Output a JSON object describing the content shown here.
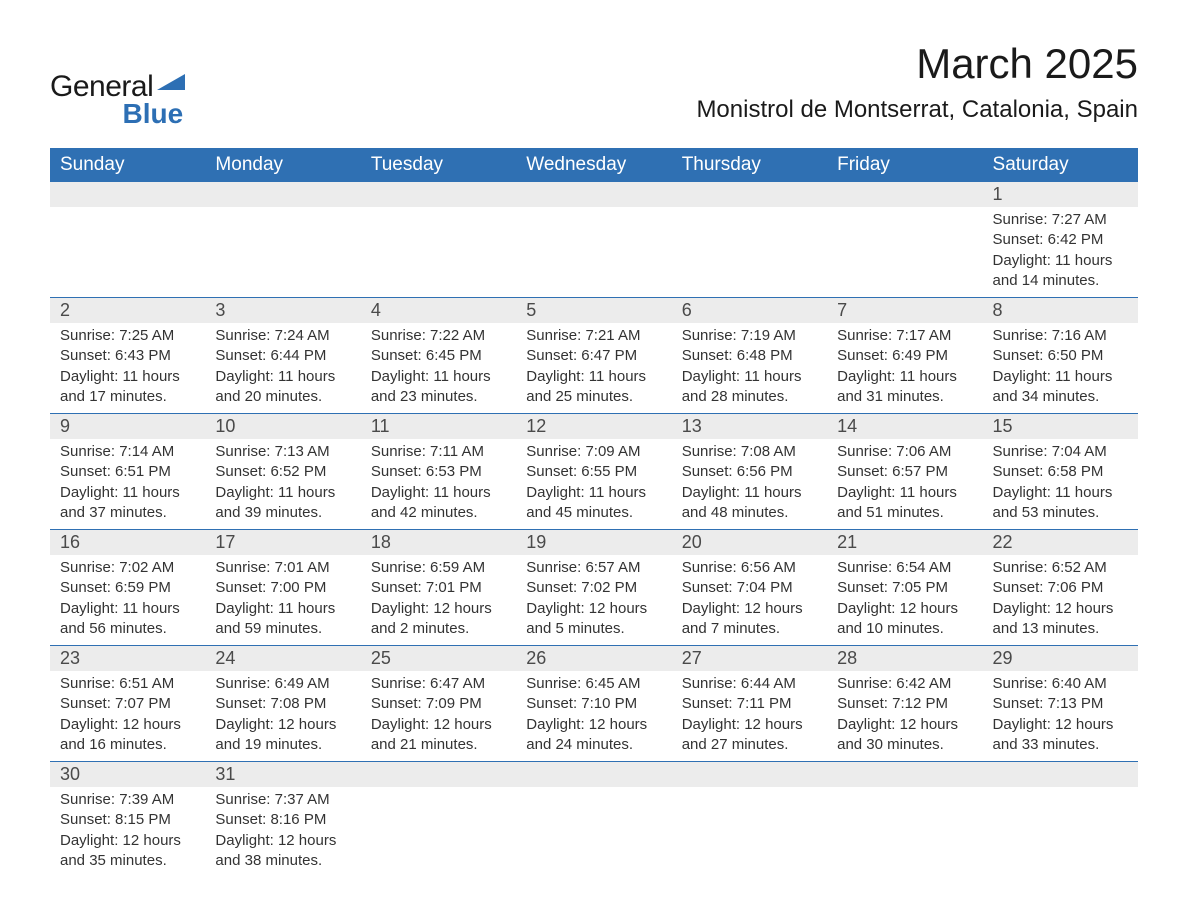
{
  "logo": {
    "word1": "General",
    "word2": "Blue"
  },
  "header": {
    "month_title": "March 2025",
    "location": "Monistrol de Montserrat, Catalonia, Spain"
  },
  "styling": {
    "header_bg": "#2f70b3",
    "header_text": "#ffffff",
    "daynum_bg": "#ececec",
    "body_text": "#333333",
    "row_border": "#2f70b3",
    "page_bg": "#ffffff",
    "logo_accent": "#2d6fb4",
    "title_fontsize": 42,
    "location_fontsize": 24,
    "weekday_fontsize": 19,
    "daynum_fontsize": 18,
    "detail_fontsize": 15
  },
  "weekdays": [
    "Sunday",
    "Monday",
    "Tuesday",
    "Wednesday",
    "Thursday",
    "Friday",
    "Saturday"
  ],
  "weeks": [
    [
      null,
      null,
      null,
      null,
      null,
      null,
      {
        "n": "1",
        "sr": "Sunrise: 7:27 AM",
        "ss": "Sunset: 6:42 PM",
        "d1": "Daylight: 11 hours",
        "d2": "and 14 minutes."
      }
    ],
    [
      {
        "n": "2",
        "sr": "Sunrise: 7:25 AM",
        "ss": "Sunset: 6:43 PM",
        "d1": "Daylight: 11 hours",
        "d2": "and 17 minutes."
      },
      {
        "n": "3",
        "sr": "Sunrise: 7:24 AM",
        "ss": "Sunset: 6:44 PM",
        "d1": "Daylight: 11 hours",
        "d2": "and 20 minutes."
      },
      {
        "n": "4",
        "sr": "Sunrise: 7:22 AM",
        "ss": "Sunset: 6:45 PM",
        "d1": "Daylight: 11 hours",
        "d2": "and 23 minutes."
      },
      {
        "n": "5",
        "sr": "Sunrise: 7:21 AM",
        "ss": "Sunset: 6:47 PM",
        "d1": "Daylight: 11 hours",
        "d2": "and 25 minutes."
      },
      {
        "n": "6",
        "sr": "Sunrise: 7:19 AM",
        "ss": "Sunset: 6:48 PM",
        "d1": "Daylight: 11 hours",
        "d2": "and 28 minutes."
      },
      {
        "n": "7",
        "sr": "Sunrise: 7:17 AM",
        "ss": "Sunset: 6:49 PM",
        "d1": "Daylight: 11 hours",
        "d2": "and 31 minutes."
      },
      {
        "n": "8",
        "sr": "Sunrise: 7:16 AM",
        "ss": "Sunset: 6:50 PM",
        "d1": "Daylight: 11 hours",
        "d2": "and 34 minutes."
      }
    ],
    [
      {
        "n": "9",
        "sr": "Sunrise: 7:14 AM",
        "ss": "Sunset: 6:51 PM",
        "d1": "Daylight: 11 hours",
        "d2": "and 37 minutes."
      },
      {
        "n": "10",
        "sr": "Sunrise: 7:13 AM",
        "ss": "Sunset: 6:52 PM",
        "d1": "Daylight: 11 hours",
        "d2": "and 39 minutes."
      },
      {
        "n": "11",
        "sr": "Sunrise: 7:11 AM",
        "ss": "Sunset: 6:53 PM",
        "d1": "Daylight: 11 hours",
        "d2": "and 42 minutes."
      },
      {
        "n": "12",
        "sr": "Sunrise: 7:09 AM",
        "ss": "Sunset: 6:55 PM",
        "d1": "Daylight: 11 hours",
        "d2": "and 45 minutes."
      },
      {
        "n": "13",
        "sr": "Sunrise: 7:08 AM",
        "ss": "Sunset: 6:56 PM",
        "d1": "Daylight: 11 hours",
        "d2": "and 48 minutes."
      },
      {
        "n": "14",
        "sr": "Sunrise: 7:06 AM",
        "ss": "Sunset: 6:57 PM",
        "d1": "Daylight: 11 hours",
        "d2": "and 51 minutes."
      },
      {
        "n": "15",
        "sr": "Sunrise: 7:04 AM",
        "ss": "Sunset: 6:58 PM",
        "d1": "Daylight: 11 hours",
        "d2": "and 53 minutes."
      }
    ],
    [
      {
        "n": "16",
        "sr": "Sunrise: 7:02 AM",
        "ss": "Sunset: 6:59 PM",
        "d1": "Daylight: 11 hours",
        "d2": "and 56 minutes."
      },
      {
        "n": "17",
        "sr": "Sunrise: 7:01 AM",
        "ss": "Sunset: 7:00 PM",
        "d1": "Daylight: 11 hours",
        "d2": "and 59 minutes."
      },
      {
        "n": "18",
        "sr": "Sunrise: 6:59 AM",
        "ss": "Sunset: 7:01 PM",
        "d1": "Daylight: 12 hours",
        "d2": "and 2 minutes."
      },
      {
        "n": "19",
        "sr": "Sunrise: 6:57 AM",
        "ss": "Sunset: 7:02 PM",
        "d1": "Daylight: 12 hours",
        "d2": "and 5 minutes."
      },
      {
        "n": "20",
        "sr": "Sunrise: 6:56 AM",
        "ss": "Sunset: 7:04 PM",
        "d1": "Daylight: 12 hours",
        "d2": "and 7 minutes."
      },
      {
        "n": "21",
        "sr": "Sunrise: 6:54 AM",
        "ss": "Sunset: 7:05 PM",
        "d1": "Daylight: 12 hours",
        "d2": "and 10 minutes."
      },
      {
        "n": "22",
        "sr": "Sunrise: 6:52 AM",
        "ss": "Sunset: 7:06 PM",
        "d1": "Daylight: 12 hours",
        "d2": "and 13 minutes."
      }
    ],
    [
      {
        "n": "23",
        "sr": "Sunrise: 6:51 AM",
        "ss": "Sunset: 7:07 PM",
        "d1": "Daylight: 12 hours",
        "d2": "and 16 minutes."
      },
      {
        "n": "24",
        "sr": "Sunrise: 6:49 AM",
        "ss": "Sunset: 7:08 PM",
        "d1": "Daylight: 12 hours",
        "d2": "and 19 minutes."
      },
      {
        "n": "25",
        "sr": "Sunrise: 6:47 AM",
        "ss": "Sunset: 7:09 PM",
        "d1": "Daylight: 12 hours",
        "d2": "and 21 minutes."
      },
      {
        "n": "26",
        "sr": "Sunrise: 6:45 AM",
        "ss": "Sunset: 7:10 PM",
        "d1": "Daylight: 12 hours",
        "d2": "and 24 minutes."
      },
      {
        "n": "27",
        "sr": "Sunrise: 6:44 AM",
        "ss": "Sunset: 7:11 PM",
        "d1": "Daylight: 12 hours",
        "d2": "and 27 minutes."
      },
      {
        "n": "28",
        "sr": "Sunrise: 6:42 AM",
        "ss": "Sunset: 7:12 PM",
        "d1": "Daylight: 12 hours",
        "d2": "and 30 minutes."
      },
      {
        "n": "29",
        "sr": "Sunrise: 6:40 AM",
        "ss": "Sunset: 7:13 PM",
        "d1": "Daylight: 12 hours",
        "d2": "and 33 minutes."
      }
    ],
    [
      {
        "n": "30",
        "sr": "Sunrise: 7:39 AM",
        "ss": "Sunset: 8:15 PM",
        "d1": "Daylight: 12 hours",
        "d2": "and 35 minutes."
      },
      {
        "n": "31",
        "sr": "Sunrise: 7:37 AM",
        "ss": "Sunset: 8:16 PM",
        "d1": "Daylight: 12 hours",
        "d2": "and 38 minutes."
      },
      null,
      null,
      null,
      null,
      null
    ]
  ]
}
